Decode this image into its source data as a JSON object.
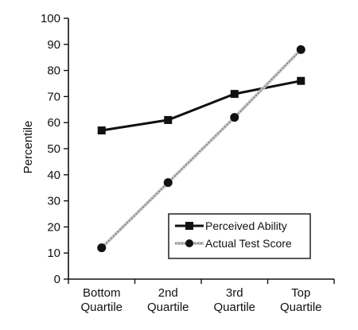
{
  "chart_data": {
    "type": "line",
    "title": "",
    "xlabel": "",
    "ylabel": "Percentile",
    "ylim": [
      0,
      100
    ],
    "yticks": [
      0,
      10,
      20,
      30,
      40,
      50,
      60,
      70,
      80,
      90,
      100
    ],
    "categories": [
      [
        "Bottom",
        "Quartile"
      ],
      [
        "2nd",
        "Quartile"
      ],
      [
        "3rd",
        "Quartile"
      ],
      [
        "Top",
        "Quartile"
      ]
    ],
    "series": [
      {
        "name": "Perceived Ability",
        "marker": "square",
        "line_style": "solid",
        "color": "#111111",
        "values": [
          57,
          61,
          71,
          76
        ]
      },
      {
        "name": "Actual Test Score",
        "marker": "circle",
        "line_style": "dotted-gray",
        "color": "#111111",
        "values": [
          12,
          37,
          62,
          88
        ]
      }
    ],
    "grid": false,
    "legend_position": "bottom-right"
  }
}
